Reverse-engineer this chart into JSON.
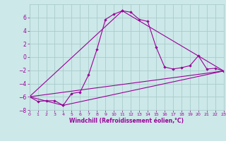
{
  "title": "",
  "xlabel": "Windchill (Refroidissement éolien,°C)",
  "ylabel": "",
  "bg_color": "#cce8e8",
  "grid_color": "#aacccc",
  "line_color": "#990099",
  "xlim": [
    0,
    23
  ],
  "ylim": [
    -8,
    8
  ],
  "xticks": [
    0,
    1,
    2,
    3,
    4,
    5,
    6,
    7,
    8,
    9,
    10,
    11,
    12,
    13,
    14,
    15,
    16,
    17,
    18,
    19,
    20,
    21,
    22,
    23
  ],
  "yticks": [
    -8,
    -6,
    -4,
    -2,
    0,
    2,
    4,
    6
  ],
  "series1_x": [
    0,
    1,
    2,
    3,
    4,
    5,
    6,
    7,
    8,
    9,
    10,
    11,
    12,
    13,
    14,
    15,
    16,
    17,
    18,
    19,
    20,
    21,
    22,
    23
  ],
  "series1_y": [
    -6.0,
    -6.7,
    -6.6,
    -6.6,
    -7.3,
    -5.5,
    -5.3,
    -2.7,
    1.2,
    5.7,
    6.5,
    7.0,
    6.8,
    5.7,
    5.4,
    1.5,
    -1.5,
    -1.8,
    -1.6,
    -1.3,
    0.2,
    -1.8,
    -1.7,
    -2.1
  ],
  "series2_x": [
    0,
    23
  ],
  "series2_y": [
    -6.0,
    -2.1
  ],
  "series3_x": [
    0,
    4,
    23
  ],
  "series3_y": [
    -6.0,
    -7.3,
    -2.1
  ],
  "series4_x": [
    0,
    11,
    23
  ],
  "series4_y": [
    -6.0,
    7.0,
    -2.1
  ]
}
